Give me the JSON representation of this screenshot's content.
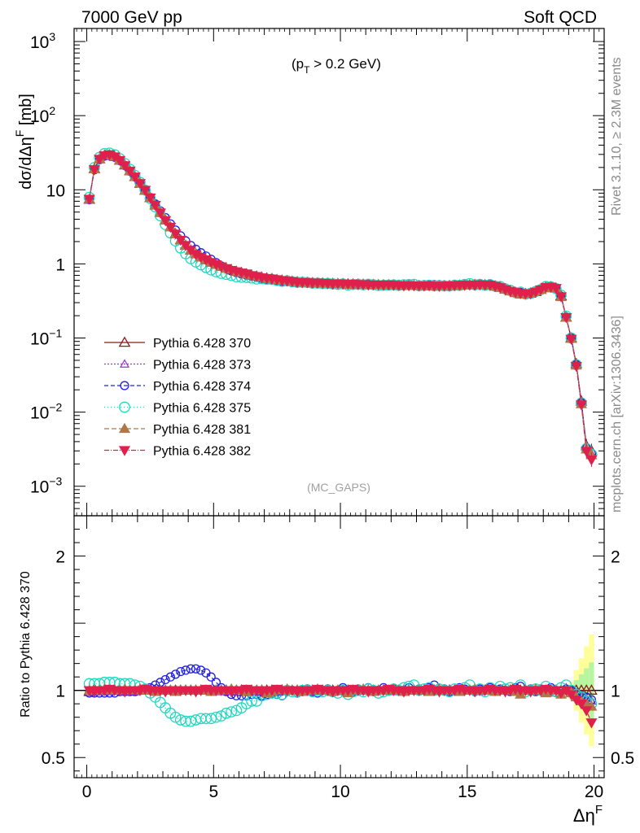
{
  "header": {
    "left": "7000 GeV pp",
    "right": "Soft QCD"
  },
  "side_text": {
    "top": "Rivet 3.1.10, ≥ 2.3M events",
    "bottom": "mcplots.cern.ch [arXiv:1306.3436]"
  },
  "watermark": "(MC_GAPS)",
  "cut_label": {
    "open": "(p",
    "sub": "T",
    "rest": " > 0.2 GeV)"
  },
  "colors": {
    "370": "#8b1a1a",
    "373": "#9b30d0",
    "374": "#2020e0",
    "375": "#20d8c0",
    "381": "#b07848",
    "382": "#e0204c"
  },
  "chart_data": [
    {
      "type": "scatter",
      "panel": "main",
      "title": "",
      "xlabel": {
        "main": "Δη",
        "sup": "F"
      },
      "ylabel": {
        "main": "dσ/dΔη",
        "sup": "F",
        "rest": " [mb]"
      },
      "yscale": "log",
      "xlim": [
        -0.5,
        20.4
      ],
      "ylim": [
        0.0004,
        1500
      ],
      "x_ticks": [
        0,
        5,
        10,
        15,
        20
      ],
      "y_ticks": [
        {
          "value": 1000,
          "base": "10",
          "exp": "3"
        },
        {
          "value": 100,
          "base": "10",
          "exp": "2"
        },
        {
          "value": 10,
          "base": "10",
          "exp": ""
        },
        {
          "value": 1,
          "base": "1",
          "exp": ""
        },
        {
          "value": 0.1,
          "base": "10",
          "exp": "−1"
        },
        {
          "value": 0.01,
          "base": "10",
          "exp": "−2"
        },
        {
          "value": 0.001,
          "base": "10",
          "exp": "−3"
        }
      ],
      "x": [
        0.1,
        0.3,
        0.5,
        0.7,
        0.9,
        1.1,
        1.3,
        1.5,
        1.7,
        1.9,
        2.1,
        2.3,
        2.5,
        2.7,
        2.9,
        3.1,
        3.3,
        3.5,
        3.7,
        3.9,
        4.1,
        4.3,
        4.5,
        4.7,
        4.9,
        5.1,
        5.3,
        5.5,
        5.7,
        5.9,
        6.1,
        6.3,
        6.5,
        6.7,
        6.9,
        7.1,
        7.3,
        7.5,
        7.7,
        7.9,
        8.1,
        8.3,
        8.5,
        8.7,
        8.9,
        9.1,
        9.3,
        9.5,
        9.7,
        9.9,
        10.1,
        10.3,
        10.5,
        10.7,
        10.9,
        11.1,
        11.3,
        11.5,
        11.7,
        11.9,
        12.1,
        12.3,
        12.5,
        12.7,
        12.9,
        13.1,
        13.3,
        13.5,
        13.7,
        13.9,
        14.1,
        14.3,
        14.5,
        14.7,
        14.9,
        15.1,
        15.3,
        15.5,
        15.7,
        15.9,
        16.1,
        16.3,
        16.5,
        16.7,
        16.9,
        17.1,
        17.3,
        17.5,
        17.7,
        17.9,
        18.1,
        18.3,
        18.5,
        18.7,
        18.9,
        19.1,
        19.3,
        19.5,
        19.7,
        19.9
      ],
      "reference": [
        7.5,
        19,
        26,
        29,
        29.5,
        28,
        25,
        21.5,
        18,
        15,
        12.2,
        9.8,
        7.8,
        6.2,
        4.9,
        3.9,
        3.15,
        2.55,
        2.1,
        1.78,
        1.53,
        1.36,
        1.23,
        1.13,
        1.05,
        0.98,
        0.92,
        0.87,
        0.83,
        0.79,
        0.76,
        0.73,
        0.7,
        0.68,
        0.66,
        0.64,
        0.63,
        0.61,
        0.6,
        0.59,
        0.58,
        0.57,
        0.565,
        0.56,
        0.555,
        0.55,
        0.548,
        0.545,
        0.542,
        0.54,
        0.538,
        0.535,
        0.533,
        0.53,
        0.528,
        0.526,
        0.524,
        0.522,
        0.52,
        0.518,
        0.516,
        0.514,
        0.512,
        0.51,
        0.508,
        0.507,
        0.506,
        0.505,
        0.505,
        0.505,
        0.506,
        0.508,
        0.51,
        0.513,
        0.517,
        0.52,
        0.522,
        0.523,
        0.52,
        0.515,
        0.5,
        0.48,
        0.455,
        0.43,
        0.41,
        0.4,
        0.395,
        0.4,
        0.42,
        0.45,
        0.48,
        0.49,
        0.47,
        0.37,
        0.19,
        0.1,
        0.045,
        0.014,
        0.0035,
        0.003
      ],
      "series": [
        {
          "name": "Pythia 6.428 370",
          "key": "370",
          "marker": "triangle-open",
          "dash": "",
          "ratio": [
            0.99,
            1.01,
            1.0,
            1.0,
            1.0,
            1.0,
            1.0,
            1.0,
            1.0,
            1.0,
            1.0,
            1.0,
            1.0,
            1.0,
            1.0,
            1.0,
            1.0,
            1.0,
            1.0,
            1.0,
            1.0,
            1.0,
            1.0,
            1.0,
            1.0,
            1.0,
            1.0,
            1.0,
            1.0,
            1.0,
            1.0,
            1.0,
            1.0,
            1.0,
            1.0,
            1.0,
            1.0,
            1.0,
            1.0,
            1.0,
            1.0,
            1.0,
            1.0,
            1.0,
            1.0,
            1.0,
            1.0,
            1.0,
            1.0,
            1.0,
            1.0,
            1.0,
            1.0,
            1.0,
            1.0,
            1.0,
            1.0,
            1.0,
            1.0,
            1.0,
            1.0,
            1.0,
            1.0,
            1.0,
            1.0,
            1.0,
            1.0,
            1.0,
            1.0,
            1.0,
            1.0,
            1.0,
            1.0,
            1.0,
            1.0,
            1.0,
            1.0,
            1.0,
            1.0,
            1.0,
            1.0,
            1.0,
            1.0,
            1.0,
            1.0,
            1.0,
            1.0,
            1.0,
            1.0,
            1.0,
            1.0,
            1.0,
            1.0,
            1.0,
            1.0,
            1.0,
            1.0,
            1.0,
            1.0,
            1.0
          ]
        },
        {
          "name": "Pythia 6.428 373",
          "key": "373",
          "marker": "triangle-open-small",
          "dash": "2,2",
          "ratio": [
            1.0,
            1.0,
            1.01,
            1.0,
            0.99,
            1.0,
            1.01,
            1.0,
            1.0,
            0.99,
            1.0,
            1.0,
            1.01,
            1.0,
            1.0,
            1.0,
            1.0,
            1.0,
            1.0,
            1.0,
            1.0,
            1.0,
            1.0,
            1.0,
            1.0,
            1.0,
            0.99,
            1.0,
            1.0,
            1.0,
            1.01,
            1.0,
            1.0,
            0.99,
            1.0,
            1.0,
            1.0,
            1.0,
            1.01,
            1.0,
            1.0,
            1.0,
            0.99,
            1.0,
            1.0,
            1.0,
            1.0,
            1.01,
            1.0,
            1.0,
            0.99,
            1.0,
            1.0,
            1.0,
            1.01,
            1.0,
            1.0,
            1.0,
            1.0,
            1.0,
            0.99,
            1.0,
            1.01,
            1.0,
            1.0,
            1.0,
            1.0,
            1.0,
            0.99,
            1.0,
            1.0,
            1.01,
            1.0,
            1.0,
            1.0,
            1.0,
            1.0,
            0.99,
            1.0,
            1.0,
            1.0,
            1.01,
            1.0,
            1.0,
            0.99,
            1.0,
            1.0,
            1.0,
            1.01,
            1.0,
            1.0,
            1.0,
            0.98,
            1.0,
            1.02,
            0.99,
            0.97,
            0.96,
            0.94,
            0.92
          ]
        },
        {
          "name": "Pythia 6.428 374",
          "key": "374",
          "marker": "circle-open",
          "dash": "5,3",
          "ratio": [
            0.98,
            0.98,
            0.98,
            0.98,
            0.98,
            0.98,
            0.99,
            0.99,
            0.99,
            0.99,
            1.0,
            1.01,
            1.02,
            1.04,
            1.06,
            1.08,
            1.1,
            1.12,
            1.14,
            1.15,
            1.16,
            1.16,
            1.15,
            1.13,
            1.1,
            1.06,
            1.02,
            0.99,
            0.97,
            0.96,
            0.96,
            0.96,
            0.97,
            0.97,
            0.96,
            0.97,
            0.98,
            0.97,
            0.96,
            0.99,
            1.0,
            0.98,
            0.99,
            1.01,
            0.99,
            0.98,
            1.0,
            1.01,
            0.99,
            1.0,
            1.02,
            1.0,
            0.99,
            1.01,
            1.0,
            1.02,
            0.99,
            1.0,
            1.02,
            1.0,
            1.01,
            1.0,
            0.99,
            1.02,
            1.0,
            1.01,
            1.0,
            1.02,
            1.04,
            1.0,
            1.01,
            0.99,
            1.0,
            1.02,
            1.01,
            1.0,
            0.99,
            1.01,
            1.0,
            1.02,
            1.0,
            1.01,
            1.0,
            0.99,
            1.02,
            1.03,
            1.0,
            1.01,
            0.99,
            1.01,
            1.0,
            1.02,
            1.0,
            0.99,
            1.01,
            1.0,
            0.98,
            0.96,
            0.95,
            0.93
          ]
        },
        {
          "name": "Pythia 6.428 375",
          "key": "375",
          "marker": "circle-open-large",
          "dash": "1,3",
          "ratio": [
            1.05,
            1.05,
            1.05,
            1.06,
            1.06,
            1.06,
            1.05,
            1.05,
            1.05,
            1.04,
            1.03,
            1.01,
            0.98,
            0.95,
            0.91,
            0.87,
            0.83,
            0.8,
            0.78,
            0.77,
            0.77,
            0.78,
            0.79,
            0.79,
            0.79,
            0.8,
            0.81,
            0.83,
            0.84,
            0.85,
            0.87,
            0.9,
            0.92,
            0.92,
            0.96,
            0.97,
            0.98,
            0.98,
            0.97,
            1.0,
            0.99,
            0.99,
            1.0,
            1.0,
            0.99,
            1.0,
            0.99,
            1.0,
            0.99,
            0.98,
            1.0,
            0.97,
            0.99,
            1.0,
            0.99,
            1.01,
            1.0,
            0.98,
            0.99,
            1.0,
            1.01,
            1.0,
            1.02,
            1.03,
            1.04,
            1.0,
            1.01,
            1.02,
            1.0,
            1.01,
            1.0,
            0.99,
            1.01,
            1.0,
            1.02,
            1.04,
            1.0,
            1.01,
            0.99,
            1.02,
            1.0,
            1.03,
            1.01,
            1.02,
            1.0,
            1.04,
            0.99,
            1.0,
            1.01,
            1.0,
            1.03,
            1.0,
            0.99,
            1.02,
            1.04,
            1.0,
            0.97,
            0.95,
            0.92,
            0.9
          ]
        },
        {
          "name": "Pythia 6.428 381",
          "key": "381",
          "marker": "triangle-filled",
          "dash": "6,3",
          "ratio": [
            1.0,
            1.0,
            1.0,
            1.01,
            1.0,
            1.0,
            1.0,
            1.01,
            1.0,
            1.0,
            1.01,
            1.0,
            1.0,
            0.99,
            1.0,
            1.0,
            1.0,
            0.99,
            1.0,
            1.0,
            1.0,
            1.0,
            1.0,
            1.0,
            0.99,
            1.0,
            1.0,
            1.0,
            1.01,
            1.0,
            1.0,
            0.99,
            1.0,
            1.0,
            1.0,
            0.98,
            0.99,
            1.0,
            1.0,
            1.01,
            1.0,
            1.0,
            0.99,
            1.0,
            1.0,
            1.01,
            1.0,
            1.0,
            0.99,
            1.0,
            1.0,
            0.98,
            1.0,
            1.0,
            1.01,
            1.0,
            0.99,
            1.0,
            1.0,
            1.0,
            1.01,
            1.0,
            0.99,
            1.0,
            1.0,
            1.0,
            1.0,
            0.99,
            1.0,
            1.01,
            1.0,
            1.0,
            1.0,
            0.99,
            1.0,
            1.0,
            1.01,
            1.0,
            1.0,
            1.0,
            0.99,
            1.0,
            1.0,
            1.0,
            0.99,
            0.97,
            1.0,
            1.0,
            1.01,
            1.0,
            0.98,
            1.0,
            1.0,
            0.97,
            1.0,
            0.98,
            0.95,
            0.92,
            0.9,
            0.88
          ]
        },
        {
          "name": "Pythia 6.428 382",
          "key": "382",
          "marker": "triangle-down-filled",
          "dash": "6,2,1,2",
          "ratio": [
            1.0,
            0.99,
            1.0,
            1.0,
            1.01,
            1.0,
            1.0,
            0.99,
            1.0,
            1.0,
            1.0,
            1.01,
            1.0,
            1.0,
            1.0,
            0.99,
            1.0,
            1.0,
            1.0,
            1.0,
            1.0,
            0.99,
            1.0,
            1.01,
            1.0,
            1.0,
            1.0,
            1.0,
            0.99,
            1.0,
            1.0,
            1.01,
            1.0,
            1.0,
            0.99,
            1.0,
            1.0,
            1.01,
            1.0,
            1.0,
            1.0,
            0.99,
            1.0,
            1.0,
            1.0,
            1.01,
            1.0,
            1.0,
            0.99,
            1.0,
            1.0,
            1.0,
            1.01,
            1.0,
            1.0,
            0.99,
            1.0,
            1.0,
            1.0,
            1.01,
            1.0,
            1.0,
            0.99,
            1.0,
            1.0,
            1.0,
            1.0,
            1.01,
            1.0,
            0.99,
            1.0,
            1.0,
            1.0,
            1.01,
            1.0,
            1.0,
            0.99,
            1.0,
            1.0,
            1.01,
            1.0,
            1.0,
            0.99,
            1.0,
            1.01,
            1.0,
            1.0,
            0.99,
            1.0,
            1.0,
            1.01,
            1.0,
            1.0,
            0.98,
            1.0,
            0.97,
            0.93,
            0.9,
            0.85,
            0.76
          ]
        }
      ],
      "legend_placement": "lower-left"
    },
    {
      "type": "scatter",
      "panel": "ratio",
      "ylabel": "Ratio to Pythia 6.428 370",
      "ylim": [
        0.35,
        2.3
      ],
      "y_ticks": [
        {
          "value": 2,
          "label": "2"
        },
        {
          "value": 1,
          "label": "1"
        },
        {
          "value": 0.5,
          "label": "0.5"
        }
      ],
      "band_note": "uncertainty band around 1 widening at high x"
    }
  ]
}
